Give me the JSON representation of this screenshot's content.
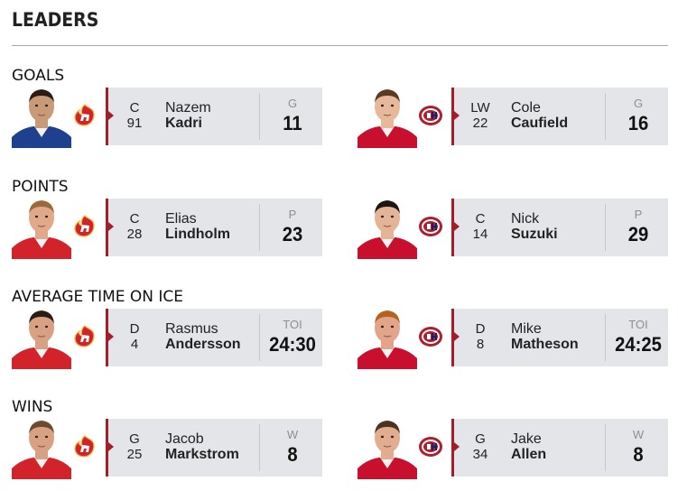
{
  "header": {
    "title": "LEADERS"
  },
  "categories": [
    {
      "label": "GOALS",
      "left": {
        "pos": "C",
        "number": "91",
        "first": "Nazem",
        "last": "Kadri",
        "stat_label": "G",
        "stat_value": "11",
        "team": "calgary-flames",
        "jersey_color": "#1f3f8f",
        "skin": "#c99a78",
        "hair": "#2b1d16"
      },
      "right": {
        "pos": "LW",
        "number": "22",
        "first": "Cole",
        "last": "Caufield",
        "stat_label": "G",
        "stat_value": "16",
        "team": "montreal-canadiens",
        "jersey_color": "#c8102e",
        "skin": "#e7b89a",
        "hair": "#5a3b22"
      }
    },
    {
      "label": "POINTS",
      "left": {
        "pos": "C",
        "number": "28",
        "first": "Elias",
        "last": "Lindholm",
        "stat_label": "P",
        "stat_value": "23",
        "team": "calgary-flames",
        "jersey_color": "#d2232a",
        "skin": "#e0a98a",
        "hair": "#9a6a3a"
      },
      "right": {
        "pos": "C",
        "number": "14",
        "first": "Nick",
        "last": "Suzuki",
        "stat_label": "P",
        "stat_value": "29",
        "team": "montreal-canadiens",
        "jersey_color": "#c8102e",
        "skin": "#e4b497",
        "hair": "#1e1612"
      }
    },
    {
      "label": "AVERAGE TIME ON ICE",
      "left": {
        "pos": "D",
        "number": "4",
        "first": "Rasmus",
        "last": "Andersson",
        "stat_label": "TOI",
        "stat_value": "24:30",
        "team": "calgary-flames",
        "jersey_color": "#d2232a",
        "skin": "#d9a183",
        "hair": "#2a1d15"
      },
      "right": {
        "pos": "D",
        "number": "8",
        "first": "Mike",
        "last": "Matheson",
        "stat_label": "TOI",
        "stat_value": "24:25",
        "team": "montreal-canadiens",
        "jersey_color": "#c8102e",
        "skin": "#e2a58a",
        "hair": "#b5621f"
      }
    },
    {
      "label": "WINS",
      "left": {
        "pos": "G",
        "number": "25",
        "first": "Jacob",
        "last": "Markstrom",
        "stat_label": "W",
        "stat_value": "8",
        "team": "calgary-flames",
        "jersey_color": "#d2232a",
        "skin": "#d9a183",
        "hair": "#6b4a30"
      },
      "right": {
        "pos": "G",
        "number": "34",
        "first": "Jake",
        "last": "Allen",
        "stat_label": "W",
        "stat_value": "8",
        "team": "montreal-canadiens",
        "jersey_color": "#c8102e",
        "skin": "#e2ac8e",
        "hair": "#4a3322"
      }
    }
  ],
  "colors": {
    "accent": "#a51c2b",
    "card_bg": "#e3e5e8",
    "flames_red": "#d2232a",
    "flames_yellow": "#f1be48",
    "habs_red": "#af1e2d",
    "habs_blue": "#192168"
  }
}
